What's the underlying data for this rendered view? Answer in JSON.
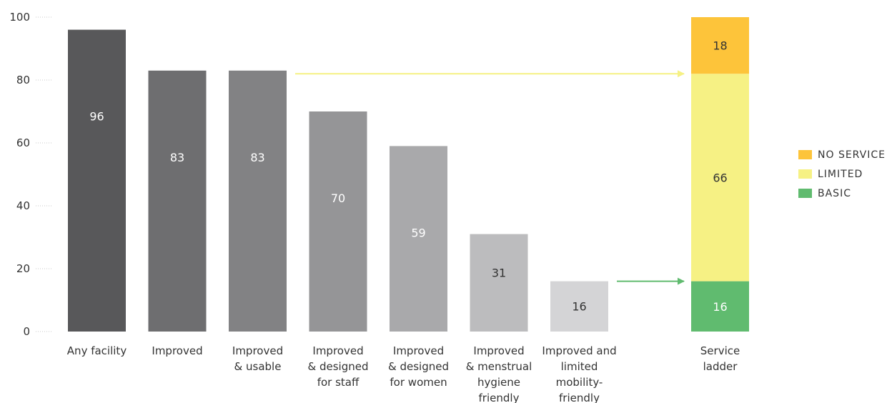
{
  "chart_data": {
    "type": "bar",
    "ylim": [
      0,
      100
    ],
    "yticks": [
      0,
      20,
      40,
      60,
      80,
      100
    ],
    "grid": false,
    "categories": [
      [
        "Any facility"
      ],
      [
        "Improved"
      ],
      [
        "Improved",
        "& usable"
      ],
      [
        "Improved",
        "& designed",
        "for staff"
      ],
      [
        "Improved",
        "& designed",
        "for women"
      ],
      [
        "Improved",
        "& menstrual",
        "hygiene",
        "friendly"
      ],
      [
        "Improved and",
        "limited",
        "mobility-",
        "friendly"
      ]
    ],
    "values": [
      96,
      83,
      83,
      70,
      59,
      31,
      16
    ],
    "bar_colors": [
      "#58585a",
      "#6e6e70",
      "#828284",
      "#959597",
      "#a9a9ab",
      "#bcbcbe",
      "#d4d4d6"
    ],
    "label_colors": [
      "#ffffff",
      "#ffffff",
      "#ffffff",
      "#ffffff",
      "#ffffff",
      "#333333",
      "#333333"
    ],
    "stacked_bar": {
      "category": [
        "Service",
        "ladder"
      ],
      "segments": [
        {
          "name": "BASIC",
          "value": 16,
          "color": "#60bb6f"
        },
        {
          "name": "LIMITED",
          "value": 66,
          "color": "#f6f184"
        },
        {
          "name": "NO SERVICE",
          "value": 18,
          "color": "#fdc43a"
        }
      ]
    },
    "legend": {
      "position": "right",
      "items": [
        {
          "label": "NO SERVICE",
          "color": "#fdc43a"
        },
        {
          "label": "LIMITED",
          "color": "#f6f184"
        },
        {
          "label": "BASIC",
          "color": "#60bb6f"
        }
      ]
    },
    "arrows": [
      {
        "from_category": 2,
        "to_value": 82,
        "color": "#f6f184"
      },
      {
        "from_category": 6,
        "to_value": 16,
        "color": "#60bb6f"
      }
    ]
  }
}
